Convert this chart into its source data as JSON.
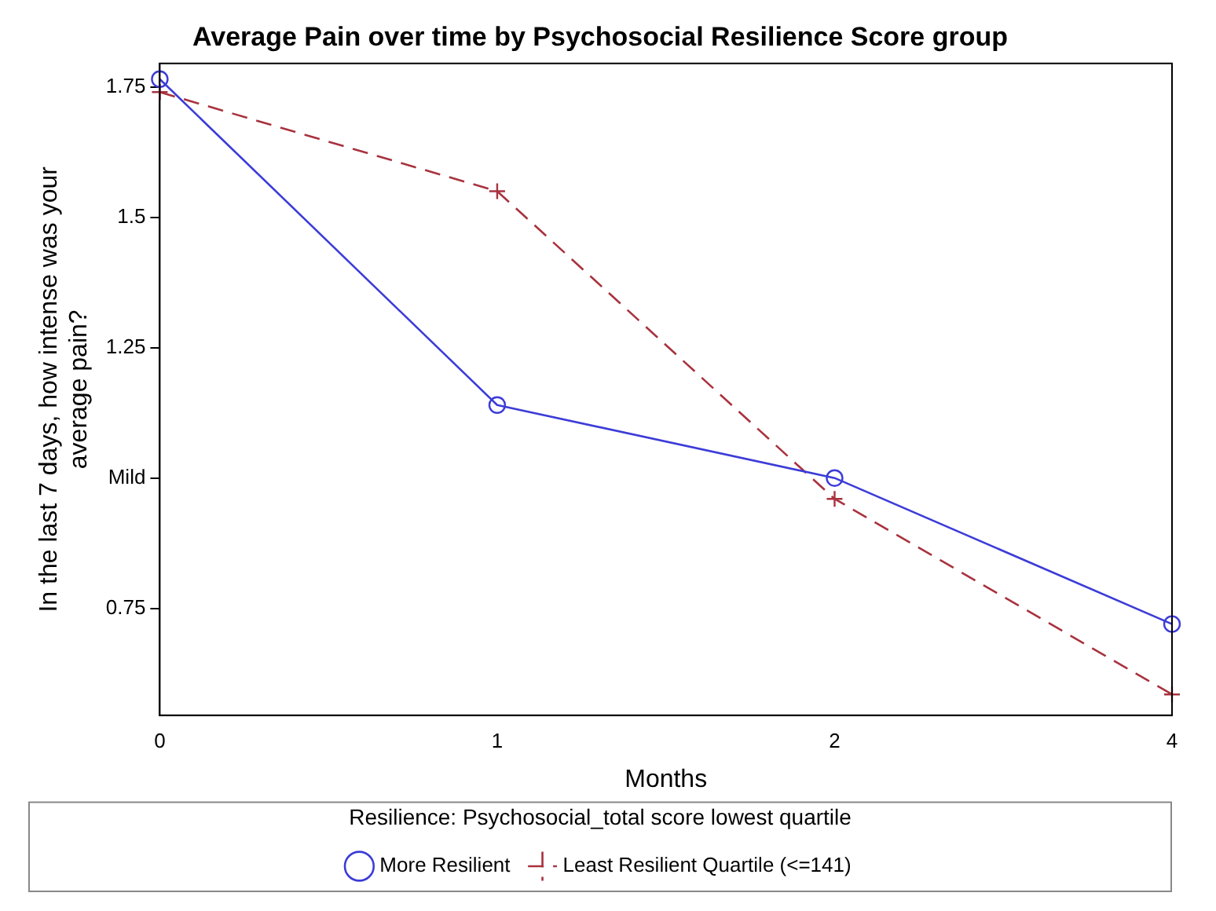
{
  "chart_data": {
    "type": "line",
    "title": "Average Pain over time by Psychosocial Resilience Score group",
    "xlabel": "Months",
    "ylabel": "In the last 7 days, how intense was your average pain?",
    "legend_title": "Resilience: Psychosocial_total score lowest quartile",
    "categories": [
      "0",
      "1",
      "2",
      "4"
    ],
    "series": [
      {
        "name": "More Resilient",
        "color": "#3c3cd8",
        "values": [
          1.765,
          1.14,
          1.0,
          0.72
        ],
        "marker": "circle",
        "line_style": "solid"
      },
      {
        "name": "Least Resilient Quartile (<=141)",
        "color": "#a8323e",
        "values": [
          1.74,
          1.55,
          0.96,
          0.585
        ],
        "marker": "cross",
        "line_style": "dashed"
      }
    ],
    "ylim": [
      0.545,
      1.795
    ],
    "yticks": [
      0.75,
      {
        "value": 1,
        "label": "Mild"
      },
      1.25,
      1.5,
      1.75
    ],
    "grid": false,
    "legend": "bottom"
  }
}
